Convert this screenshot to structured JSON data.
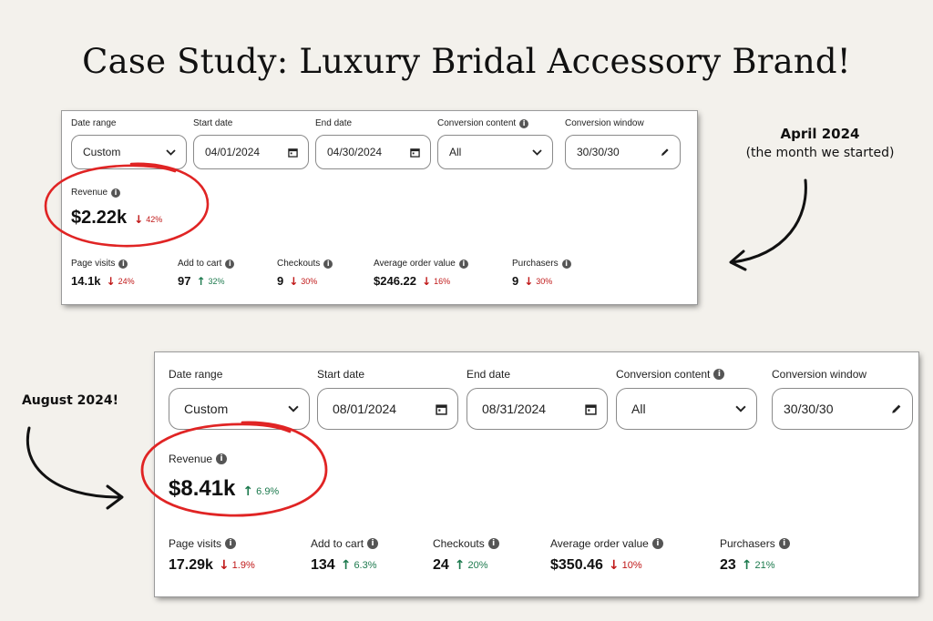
{
  "title": "Case Study: Luxury Bridal Accessory Brand!",
  "annotations": {
    "april_heading": "April 2024",
    "april_sub": "(the month we started)",
    "august_heading": "August 2024!"
  },
  "labels": {
    "date_range": "Date range",
    "start_date": "Start date",
    "end_date": "End date",
    "conversion_content": "Conversion content",
    "conversion_window": "Conversion window",
    "revenue": "Revenue",
    "page_visits": "Page visits",
    "add_to_cart": "Add to cart",
    "checkouts": "Checkouts",
    "average_order_value": "Average order value",
    "purchasers": "Purchasers"
  },
  "colors": {
    "accent_red": "#e02424",
    "down": "#c01818",
    "up": "#1d7a4e"
  },
  "icons": [
    "info-icon",
    "chevron-down-icon",
    "calendar-icon",
    "pencil-icon",
    "arrow-down-icon",
    "arrow-up-icon"
  ],
  "april": {
    "date_range": "Custom",
    "start_date": "04/01/2024",
    "end_date": "04/30/2024",
    "conversion_content": "All",
    "conversion_window": "30/30/30",
    "revenue": {
      "value": "$2.22k",
      "change": "42%",
      "dir": "down"
    },
    "page_visits": {
      "value": "14.1k",
      "change": "24%",
      "dir": "down"
    },
    "add_to_cart": {
      "value": "97",
      "change": "32%",
      "dir": "up"
    },
    "checkouts": {
      "value": "9",
      "change": "30%",
      "dir": "down"
    },
    "average_order_value": {
      "value": "$246.22",
      "change": "16%",
      "dir": "down"
    },
    "purchasers": {
      "value": "9",
      "change": "30%",
      "dir": "down"
    }
  },
  "august": {
    "date_range": "Custom",
    "start_date": "08/01/2024",
    "end_date": "08/31/2024",
    "conversion_content": "All",
    "conversion_window": "30/30/30",
    "revenue": {
      "value": "$8.41k",
      "change": "6.9%",
      "dir": "up"
    },
    "page_visits": {
      "value": "17.29k",
      "change": "1.9%",
      "dir": "down"
    },
    "add_to_cart": {
      "value": "134",
      "change": "6.3%",
      "dir": "up"
    },
    "checkouts": {
      "value": "24",
      "change": "20%",
      "dir": "up"
    },
    "average_order_value": {
      "value": "$350.46",
      "change": "10%",
      "dir": "down"
    },
    "purchasers": {
      "value": "23",
      "change": "21%",
      "dir": "up"
    }
  }
}
